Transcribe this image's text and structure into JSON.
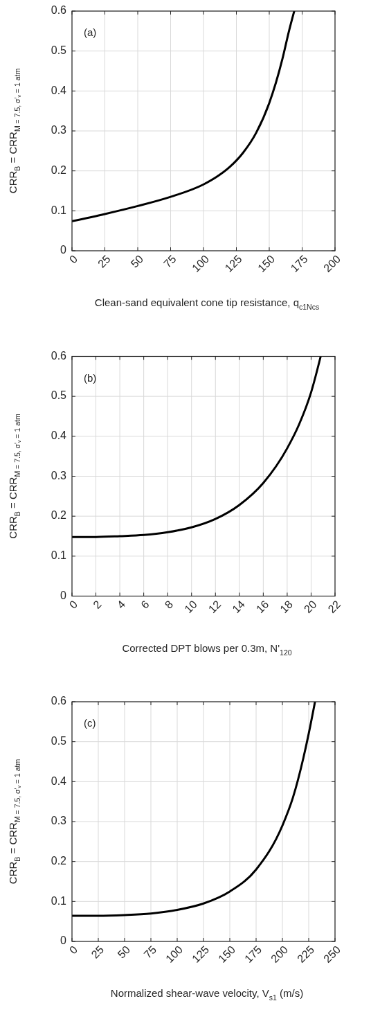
{
  "chart_data": [
    {
      "type": "line",
      "xlabel": "Clean-sand equivalent cone tip resistance, q$_{c1Ncs}$",
      "ylabel": "CRR$_{B}$ = CRR$_{M = 7.5, σ'ᵥ = 1 atm}$",
      "annotations": [
        "(a)"
      ],
      "grid": true,
      "line_style": "solid",
      "marker": "none",
      "xlim": [
        0,
        200
      ],
      "xticks": [
        0,
        25,
        50,
        75,
        100,
        125,
        150,
        175,
        200
      ],
      "ylim": [
        0,
        0.6
      ],
      "yticks": [
        0,
        0.1,
        0.2,
        0.3,
        0.4,
        0.5,
        0.6
      ],
      "series": [
        {
          "color": "#000000",
          "x": [
            0,
            25,
            50,
            75,
            100,
            110,
            120,
            130,
            140,
            150,
            155,
            160,
            165,
            169
          ],
          "values": [
            0.074,
            0.092,
            0.112,
            0.135,
            0.166,
            0.185,
            0.21,
            0.245,
            0.295,
            0.37,
            0.42,
            0.48,
            0.55,
            0.6
          ]
        }
      ]
    },
    {
      "type": "line",
      "xlabel": "Corrected DPT blows per 0.3m, N'$_{120}$",
      "ylabel": "CRR$_{B}$ = CRR$_{M = 7.5, σ'ᵥ = 1 atm}$",
      "annotations": [
        "(b)"
      ],
      "grid": true,
      "line_style": "solid",
      "marker": "none",
      "xlim": [
        0,
        22
      ],
      "xticks": [
        0,
        2,
        4,
        6,
        8,
        10,
        12,
        14,
        16,
        18,
        20,
        22
      ],
      "ylim": [
        0,
        0.6
      ],
      "yticks": [
        0,
        0.1,
        0.2,
        0.3,
        0.4,
        0.5,
        0.6
      ],
      "series": [
        {
          "color": "#000000",
          "x": [
            0,
            2,
            4,
            6,
            8,
            10,
            12,
            14,
            16,
            18,
            19,
            20,
            20.8
          ],
          "values": [
            0.148,
            0.148,
            0.15,
            0.153,
            0.16,
            0.172,
            0.193,
            0.228,
            0.283,
            0.37,
            0.43,
            0.51,
            0.6
          ]
        }
      ]
    },
    {
      "type": "line",
      "xlabel": "Normalized shear-wave velocity, V$_{s1}$ (m/s)",
      "ylabel": "CRR$_{B}$ = CRR$_{M = 7.5, σ'ᵥ = 1 atm}$",
      "annotations": [
        "(c)"
      ],
      "grid": true,
      "line_style": "solid",
      "marker": "none",
      "xlim": [
        0,
        250
      ],
      "xticks": [
        0,
        25,
        50,
        75,
        100,
        125,
        150,
        175,
        200,
        225,
        250
      ],
      "ylim": [
        0,
        0.6
      ],
      "yticks": [
        0,
        0.1,
        0.2,
        0.3,
        0.4,
        0.5,
        0.6
      ],
      "series": [
        {
          "color": "#000000",
          "x": [
            0,
            25,
            50,
            75,
            100,
            125,
            150,
            175,
            200,
            210,
            220,
            225,
            231
          ],
          "values": [
            0.064,
            0.064,
            0.066,
            0.07,
            0.079,
            0.095,
            0.125,
            0.18,
            0.29,
            0.36,
            0.46,
            0.52,
            0.6
          ]
        }
      ]
    }
  ]
}
